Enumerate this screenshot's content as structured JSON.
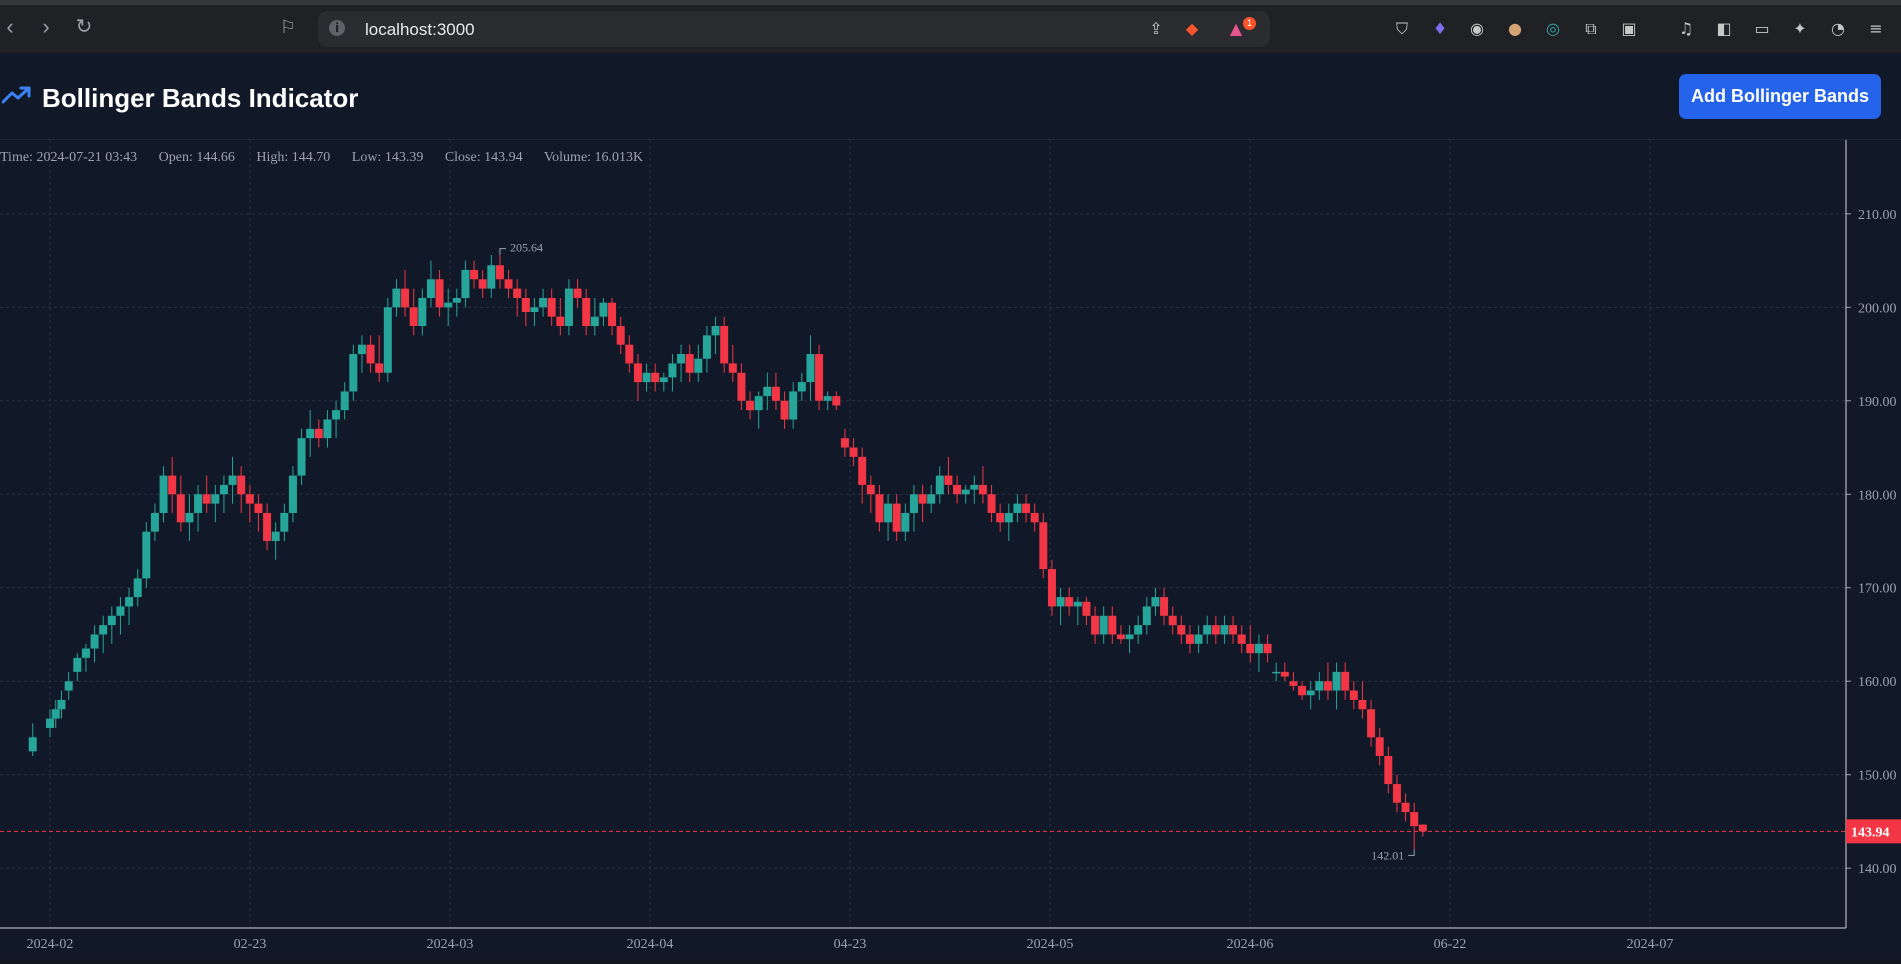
{
  "browser": {
    "url": "localhost:3000",
    "notification_count": "1"
  },
  "app": {
    "title": "Bollinger Bands Indicator",
    "add_button_label": "Add Bollinger Bands"
  },
  "legend": {
    "time": "Time: 2024-07-21 03:43",
    "open": "Open: 144.66",
    "high": "High: 144.70",
    "low": "Low: 143.39",
    "close": "Close: 143.94",
    "volume": "Volume: 16.013K"
  },
  "colors": {
    "up": "#26a69a",
    "down": "#f23645",
    "background": "#111827",
    "accent": "#2563eb"
  },
  "chart_data": {
    "type": "candlestick",
    "y_ticks": [
      "210.00",
      "200.00",
      "190.00",
      "180.00",
      "170.00",
      "160.00",
      "150.00",
      "140.00"
    ],
    "x_ticks": [
      "2024-02",
      "02-23",
      "2024-03",
      "2024-04",
      "04-23",
      "2024-05",
      "2024-06",
      "06-22",
      "2024-07"
    ],
    "ylim": [
      133.6,
      217.9
    ],
    "last_price_label": "143.94",
    "max_label": "205.64",
    "min_label": "142.01",
    "candles": [
      {
        "t": -0.6,
        "o": 152.5,
        "h": 155.5,
        "l": 152,
        "c": 154
      },
      {
        "t": 0,
        "o": 155,
        "h": 157,
        "l": 154,
        "c": 156
      },
      {
        "t": 0.2,
        "o": 156,
        "h": 158,
        "l": 155,
        "c": 157
      },
      {
        "t": 0.4,
        "o": 157,
        "h": 159,
        "l": 156,
        "c": 158
      },
      {
        "t": 0.65,
        "o": 159,
        "h": 161,
        "l": 158,
        "c": 160
      },
      {
        "t": 0.95,
        "o": 161,
        "h": 163,
        "l": 160,
        "c": 162.5
      },
      {
        "t": 1.25,
        "o": 162.5,
        "h": 164,
        "l": 161,
        "c": 163.5
      },
      {
        "t": 1.55,
        "o": 163.5,
        "h": 166,
        "l": 162,
        "c": 165
      },
      {
        "t": 1.85,
        "o": 165,
        "h": 167,
        "l": 163,
        "c": 166
      },
      {
        "t": 2.15,
        "o": 166,
        "h": 168,
        "l": 164,
        "c": 167
      },
      {
        "t": 2.45,
        "o": 167,
        "h": 169,
        "l": 165,
        "c": 168
      },
      {
        "t": 2.75,
        "o": 168,
        "h": 170,
        "l": 166,
        "c": 169
      },
      {
        "t": 3.05,
        "o": 169,
        "h": 172,
        "l": 168,
        "c": 171
      },
      {
        "t": 3.35,
        "o": 171,
        "h": 177,
        "l": 170,
        "c": 176
      },
      {
        "t": 3.65,
        "o": 176,
        "h": 179,
        "l": 175,
        "c": 178
      },
      {
        "t": 3.95,
        "o": 178,
        "h": 183,
        "l": 177,
        "c": 182
      },
      {
        "t": 4.25,
        "o": 182,
        "h": 184,
        "l": 178,
        "c": 180
      },
      {
        "t": 4.55,
        "o": 180,
        "h": 182,
        "l": 176,
        "c": 177
      },
      {
        "t": 4.85,
        "o": 177,
        "h": 180,
        "l": 175,
        "c": 178
      },
      {
        "t": 5.15,
        "o": 178,
        "h": 181,
        "l": 176,
        "c": 180
      },
      {
        "t": 5.45,
        "o": 180,
        "h": 182,
        "l": 178,
        "c": 179
      },
      {
        "t": 5.75,
        "o": 179,
        "h": 181,
        "l": 177,
        "c": 180
      },
      {
        "t": 6.05,
        "o": 180,
        "h": 182,
        "l": 178,
        "c": 181
      },
      {
        "t": 6.35,
        "o": 181,
        "h": 184,
        "l": 179,
        "c": 182
      },
      {
        "t": 6.65,
        "o": 182,
        "h": 183,
        "l": 178,
        "c": 180
      },
      {
        "t": 6.95,
        "o": 180,
        "h": 181,
        "l": 177,
        "c": 179
      },
      {
        "t": 7.25,
        "o": 179,
        "h": 180,
        "l": 176,
        "c": 178
      },
      {
        "t": 7.55,
        "o": 178,
        "h": 179,
        "l": 174,
        "c": 175
      },
      {
        "t": 7.85,
        "o": 175,
        "h": 177,
        "l": 173,
        "c": 176
      },
      {
        "t": 8.15,
        "o": 176,
        "h": 179,
        "l": 175,
        "c": 178
      },
      {
        "t": 8.45,
        "o": 178,
        "h": 183,
        "l": 177,
        "c": 182
      },
      {
        "t": 8.75,
        "o": 182,
        "h": 187,
        "l": 181,
        "c": 186
      },
      {
        "t": 9.05,
        "o": 186,
        "h": 189,
        "l": 184,
        "c": 187
      },
      {
        "t": 9.35,
        "o": 187,
        "h": 188,
        "l": 185,
        "c": 186
      },
      {
        "t": 9.65,
        "o": 186,
        "h": 189,
        "l": 185,
        "c": 188
      },
      {
        "t": 9.95,
        "o": 188,
        "h": 190,
        "l": 186,
        "c": 189
      },
      {
        "t": 10.25,
        "o": 189,
        "h": 192,
        "l": 188,
        "c": 191
      },
      {
        "t": 10.55,
        "o": 191,
        "h": 196,
        "l": 190,
        "c": 195
      },
      {
        "t": 10.85,
        "o": 195,
        "h": 197,
        "l": 193,
        "c": 196
      },
      {
        "t": 11.15,
        "o": 196,
        "h": 197,
        "l": 193,
        "c": 194
      },
      {
        "t": 11.45,
        "o": 194,
        "h": 197,
        "l": 192,
        "c": 193
      },
      {
        "t": 11.75,
        "o": 193,
        "h": 201,
        "l": 192,
        "c": 200
      },
      {
        "t": 12.05,
        "o": 200,
        "h": 203,
        "l": 199,
        "c": 202
      },
      {
        "t": 12.35,
        "o": 202,
        "h": 204,
        "l": 199,
        "c": 200
      },
      {
        "t": 12.65,
        "o": 200,
        "h": 202,
        "l": 197,
        "c": 198
      },
      {
        "t": 12.95,
        "o": 198,
        "h": 202,
        "l": 197,
        "c": 201
      },
      {
        "t": 13.25,
        "o": 201,
        "h": 205,
        "l": 200,
        "c": 203
      },
      {
        "t": 13.55,
        "o": 203,
        "h": 204,
        "l": 199,
        "c": 200
      },
      {
        "t": 13.85,
        "o": 200,
        "h": 202,
        "l": 198,
        "c": 200.5
      },
      {
        "t": 14.15,
        "o": 200.5,
        "h": 202,
        "l": 199,
        "c": 201
      },
      {
        "t": 14.45,
        "o": 201,
        "h": 205,
        "l": 200,
        "c": 204
      },
      {
        "t": 14.75,
        "o": 204,
        "h": 205,
        "l": 202,
        "c": 203
      },
      {
        "t": 15.05,
        "o": 203,
        "h": 204,
        "l": 201,
        "c": 202
      },
      {
        "t": 15.35,
        "o": 202,
        "h": 205.6,
        "l": 201,
        "c": 204.5
      },
      {
        "t": 15.65,
        "o": 204.5,
        "h": 205.64,
        "l": 202,
        "c": 203
      },
      {
        "t": 15.95,
        "o": 203,
        "h": 204,
        "l": 201,
        "c": 202
      },
      {
        "t": 16.25,
        "o": 202,
        "h": 203,
        "l": 199,
        "c": 201
      },
      {
        "t": 16.55,
        "o": 201,
        "h": 202,
        "l": 198,
        "c": 199.5
      },
      {
        "t": 16.85,
        "o": 199.5,
        "h": 201,
        "l": 198,
        "c": 200
      },
      {
        "t": 17.15,
        "o": 200,
        "h": 202,
        "l": 199,
        "c": 201
      },
      {
        "t": 17.45,
        "o": 201,
        "h": 202,
        "l": 198,
        "c": 199
      },
      {
        "t": 17.75,
        "o": 199,
        "h": 201,
        "l": 197,
        "c": 198
      },
      {
        "t": 18.05,
        "o": 198,
        "h": 203,
        "l": 197,
        "c": 202
      },
      {
        "t": 18.35,
        "o": 202,
        "h": 203,
        "l": 200,
        "c": 201
      },
      {
        "t": 18.65,
        "o": 201,
        "h": 202,
        "l": 197,
        "c": 198
      },
      {
        "t": 18.95,
        "o": 198,
        "h": 201,
        "l": 197,
        "c": 199
      },
      {
        "t": 19.25,
        "o": 199,
        "h": 201,
        "l": 198,
        "c": 200.5
      },
      {
        "t": 19.55,
        "o": 200.5,
        "h": 201,
        "l": 197,
        "c": 198
      },
      {
        "t": 19.85,
        "o": 198,
        "h": 199,
        "l": 195,
        "c": 196
      },
      {
        "t": 20.15,
        "o": 196,
        "h": 197,
        "l": 193,
        "c": 194
      },
      {
        "t": 20.45,
        "o": 194,
        "h": 195,
        "l": 190,
        "c": 192
      },
      {
        "t": 20.75,
        "o": 192,
        "h": 194,
        "l": 191,
        "c": 193
      },
      {
        "t": 21.05,
        "o": 193,
        "h": 194,
        "l": 191,
        "c": 192
      },
      {
        "t": 21.35,
        "o": 192,
        "h": 193,
        "l": 191,
        "c": 192.5
      },
      {
        "t": 21.65,
        "o": 192.5,
        "h": 195,
        "l": 191,
        "c": 194
      },
      {
        "t": 21.95,
        "o": 194,
        "h": 196,
        "l": 192,
        "c": 195
      },
      {
        "t": 22.25,
        "o": 195,
        "h": 196,
        "l": 192,
        "c": 193
      },
      {
        "t": 22.55,
        "o": 193,
        "h": 196,
        "l": 192,
        "c": 194.5
      },
      {
        "t": 22.85,
        "o": 194.5,
        "h": 198,
        "l": 193,
        "c": 197
      },
      {
        "t": 23.15,
        "o": 197,
        "h": 199,
        "l": 195,
        "c": 198
      },
      {
        "t": 23.45,
        "o": 198,
        "h": 199,
        "l": 193,
        "c": 194
      },
      {
        "t": 23.75,
        "o": 194,
        "h": 196,
        "l": 192,
        "c": 193
      },
      {
        "t": 24.05,
        "o": 193,
        "h": 194,
        "l": 189,
        "c": 190
      },
      {
        "t": 24.35,
        "o": 190,
        "h": 191,
        "l": 188,
        "c": 189
      },
      {
        "t": 24.65,
        "o": 189,
        "h": 191,
        "l": 187,
        "c": 190.5
      },
      {
        "t": 24.95,
        "o": 190.5,
        "h": 193,
        "l": 189,
        "c": 191.5
      },
      {
        "t": 25.25,
        "o": 191.5,
        "h": 193,
        "l": 189,
        "c": 190
      },
      {
        "t": 25.55,
        "o": 190,
        "h": 191,
        "l": 187,
        "c": 188
      },
      {
        "t": 25.85,
        "o": 188,
        "h": 192,
        "l": 187,
        "c": 191
      },
      {
        "t": 26.15,
        "o": 191,
        "h": 193,
        "l": 190,
        "c": 192
      },
      {
        "t": 26.45,
        "o": 192,
        "h": 197,
        "l": 190,
        "c": 195
      },
      {
        "t": 26.75,
        "o": 195,
        "h": 196,
        "l": 189,
        "c": 190
      },
      {
        "t": 27.05,
        "o": 190,
        "h": 191,
        "l": 189,
        "c": 190.5
      },
      {
        "t": 27.35,
        "o": 190.5,
        "h": 191,
        "l": 189,
        "c": 189.5
      },
      {
        "t": 27.65,
        "o": 186,
        "h": 187,
        "l": 184,
        "c": 185
      },
      {
        "t": 27.95,
        "o": 185,
        "h": 186,
        "l": 183,
        "c": 184
      },
      {
        "t": 28.25,
        "o": 184,
        "h": 185,
        "l": 179,
        "c": 181
      },
      {
        "t": 28.55,
        "o": 181,
        "h": 182,
        "l": 178,
        "c": 180
      },
      {
        "t": 28.85,
        "o": 180,
        "h": 181,
        "l": 176,
        "c": 177
      },
      {
        "t": 29.15,
        "o": 177,
        "h": 180,
        "l": 175,
        "c": 179
      },
      {
        "t": 29.45,
        "o": 179,
        "h": 180,
        "l": 175,
        "c": 176
      },
      {
        "t": 29.75,
        "o": 176,
        "h": 179,
        "l": 175,
        "c": 178
      },
      {
        "t": 30.05,
        "o": 178,
        "h": 181,
        "l": 176,
        "c": 180
      },
      {
        "t": 30.35,
        "o": 180,
        "h": 181,
        "l": 177,
        "c": 179
      },
      {
        "t": 30.65,
        "o": 179,
        "h": 181,
        "l": 178,
        "c": 180
      },
      {
        "t": 30.95,
        "o": 180,
        "h": 183,
        "l": 179,
        "c": 182
      },
      {
        "t": 31.25,
        "o": 182,
        "h": 184,
        "l": 180,
        "c": 181
      },
      {
        "t": 31.55,
        "o": 181,
        "h": 182,
        "l": 179,
        "c": 180
      },
      {
        "t": 31.85,
        "o": 180,
        "h": 181,
        "l": 179,
        "c": 180.5
      },
      {
        "t": 32.15,
        "o": 180.5,
        "h": 182,
        "l": 179,
        "c": 181
      },
      {
        "t": 32.45,
        "o": 181,
        "h": 183,
        "l": 179,
        "c": 180
      },
      {
        "t": 32.75,
        "o": 180,
        "h": 181,
        "l": 177,
        "c": 178
      },
      {
        "t": 33.05,
        "o": 178,
        "h": 179,
        "l": 176,
        "c": 177
      },
      {
        "t": 33.35,
        "o": 177,
        "h": 179,
        "l": 175,
        "c": 178
      },
      {
        "t": 33.65,
        "o": 178,
        "h": 180,
        "l": 177,
        "c": 179
      },
      {
        "t": 33.95,
        "o": 179,
        "h": 180,
        "l": 177,
        "c": 178
      },
      {
        "t": 34.25,
        "o": 178,
        "h": 179,
        "l": 176,
        "c": 177
      },
      {
        "t": 34.55,
        "o": 177,
        "h": 178,
        "l": 171,
        "c": 172
      },
      {
        "t": 34.85,
        "o": 172,
        "h": 173,
        "l": 167,
        "c": 168
      },
      {
        "t": 35.15,
        "o": 168,
        "h": 170,
        "l": 166,
        "c": 169
      },
      {
        "t": 35.45,
        "o": 169,
        "h": 170,
        "l": 167,
        "c": 168
      },
      {
        "t": 35.75,
        "o": 168,
        "h": 169,
        "l": 166,
        "c": 168.5
      },
      {
        "t": 36.05,
        "o": 168.5,
        "h": 169,
        "l": 166,
        "c": 167
      },
      {
        "t": 36.35,
        "o": 167,
        "h": 168,
        "l": 164,
        "c": 165
      },
      {
        "t": 36.65,
        "o": 165,
        "h": 168,
        "l": 164,
        "c": 167
      },
      {
        "t": 36.95,
        "o": 167,
        "h": 168,
        "l": 164,
        "c": 165
      },
      {
        "t": 37.25,
        "o": 165,
        "h": 166,
        "l": 164,
        "c": 164.5
      },
      {
        "t": 37.55,
        "o": 164.5,
        "h": 166,
        "l": 163,
        "c": 165
      },
      {
        "t": 37.85,
        "o": 165,
        "h": 167,
        "l": 164,
        "c": 166
      },
      {
        "t": 38.15,
        "o": 166,
        "h": 169,
        "l": 165,
        "c": 168
      },
      {
        "t": 38.45,
        "o": 168,
        "h": 170,
        "l": 167,
        "c": 169
      },
      {
        "t": 38.75,
        "o": 169,
        "h": 170,
        "l": 166,
        "c": 167
      },
      {
        "t": 39.05,
        "o": 167,
        "h": 168,
        "l": 165,
        "c": 166
      },
      {
        "t": 39.35,
        "o": 166,
        "h": 167,
        "l": 164,
        "c": 165
      },
      {
        "t": 39.65,
        "o": 165,
        "h": 166,
        "l": 163,
        "c": 164
      },
      {
        "t": 39.95,
        "o": 164,
        "h": 166,
        "l": 163,
        "c": 165
      },
      {
        "t": 40.25,
        "o": 165,
        "h": 167,
        "l": 164,
        "c": 166
      },
      {
        "t": 40.55,
        "o": 166,
        "h": 167,
        "l": 164,
        "c": 165
      },
      {
        "t": 40.85,
        "o": 165,
        "h": 167,
        "l": 164,
        "c": 166
      },
      {
        "t": 41.15,
        "o": 166,
        "h": 167,
        "l": 164,
        "c": 165
      },
      {
        "t": 41.45,
        "o": 165,
        "h": 166,
        "l": 163,
        "c": 164
      },
      {
        "t": 41.75,
        "o": 164,
        "h": 166,
        "l": 162,
        "c": 163
      },
      {
        "t": 42.05,
        "o": 163,
        "h": 165,
        "l": 161,
        "c": 164
      },
      {
        "t": 42.35,
        "o": 164,
        "h": 165,
        "l": 162,
        "c": 163
      },
      {
        "t": 42.65,
        "o": 161,
        "h": 162,
        "l": 160,
        "c": 161
      },
      {
        "t": 42.95,
        "o": 161,
        "h": 162,
        "l": 160,
        "c": 160.5
      },
      {
        "t": 43.25,
        "o": 160,
        "h": 161,
        "l": 159,
        "c": 159.5
      },
      {
        "t": 43.55,
        "o": 159.5,
        "h": 160,
        "l": 158,
        "c": 158.5
      },
      {
        "t": 43.85,
        "o": 158.5,
        "h": 160,
        "l": 157,
        "c": 159
      },
      {
        "t": 44.15,
        "o": 159,
        "h": 161,
        "l": 158,
        "c": 160
      },
      {
        "t": 44.45,
        "o": 160,
        "h": 162,
        "l": 158,
        "c": 159
      },
      {
        "t": 44.75,
        "o": 159,
        "h": 162,
        "l": 157,
        "c": 161
      },
      {
        "t": 45.05,
        "o": 161,
        "h": 162,
        "l": 158,
        "c": 159
      },
      {
        "t": 45.35,
        "o": 159,
        "h": 160,
        "l": 157,
        "c": 158
      },
      {
        "t": 45.65,
        "o": 158,
        "h": 160,
        "l": 156,
        "c": 157
      },
      {
        "t": 45.95,
        "o": 157,
        "h": 158,
        "l": 153,
        "c": 154
      },
      {
        "t": 46.25,
        "o": 154,
        "h": 155,
        "l": 151,
        "c": 152
      },
      {
        "t": 46.55,
        "o": 152,
        "h": 153,
        "l": 148,
        "c": 149
      },
      {
        "t": 46.85,
        "o": 149,
        "h": 150,
        "l": 146,
        "c": 147
      },
      {
        "t": 47.15,
        "o": 147,
        "h": 148,
        "l": 145,
        "c": 146
      },
      {
        "t": 47.45,
        "o": 146,
        "h": 147,
        "l": 142.01,
        "c": 144.5
      },
      {
        "t": 47.75,
        "o": 144.66,
        "h": 144.7,
        "l": 143.39,
        "c": 143.94
      }
    ]
  }
}
